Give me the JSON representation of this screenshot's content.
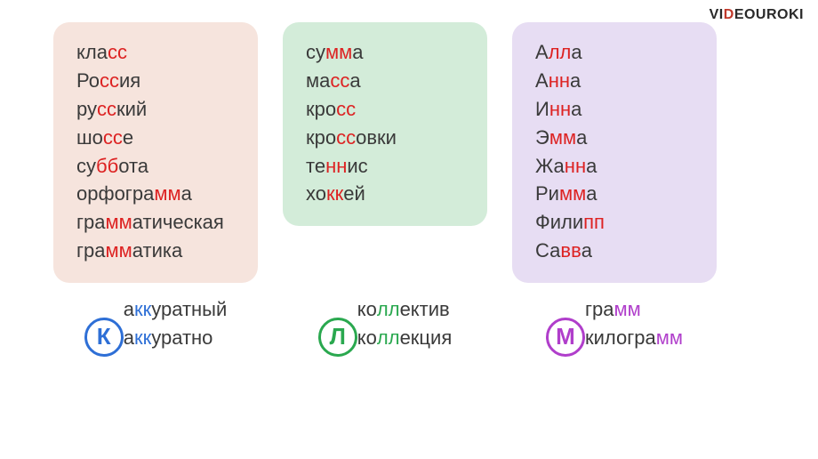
{
  "logo": {
    "pre": "VI",
    "d": "D",
    "post": "EOUROK",
    "dot": "I"
  },
  "columns": [
    {
      "bg": "card-pink",
      "words": [
        {
          "pre": "кла",
          "hl": "сс",
          "post": ""
        },
        {
          "pre": "Ро",
          "hl": "сс",
          "post": "ия"
        },
        {
          "pre": "ру",
          "hl": "сс",
          "post": "кий"
        },
        {
          "pre": "шо",
          "hl": "сс",
          "post": "е"
        },
        {
          "pre": "су",
          "hl": "бб",
          "post": "ота"
        },
        {
          "pre": "орфогра",
          "hl": "мм",
          "post": "а"
        },
        {
          "pre": "гра",
          "hl": "мм",
          "post": "атическая"
        },
        {
          "pre": "гра",
          "hl": "мм",
          "post": "атика"
        }
      ]
    },
    {
      "bg": "card-green",
      "words": [
        {
          "pre": "су",
          "hl": "мм",
          "post": "а"
        },
        {
          "pre": "ма",
          "hl": "сс",
          "post": "а"
        },
        {
          "pre": "кро",
          "hl": "сс",
          "post": ""
        },
        {
          "pre": "кро",
          "hl": "сс",
          "post": "овки"
        },
        {
          "pre": "те",
          "hl": "нн",
          "post": "ис"
        },
        {
          "pre": "хо",
          "hl": "кк",
          "post": "ей"
        }
      ]
    },
    {
      "bg": "card-lilac",
      "words": [
        {
          "pre": "А",
          "hl": "лл",
          "post": "а"
        },
        {
          "pre": "А",
          "hl": "нн",
          "post": "а"
        },
        {
          "pre": "И",
          "hl": "нн",
          "post": "а"
        },
        {
          "pre": "Э",
          "hl": "мм",
          "post": "а"
        },
        {
          "pre": "Жа",
          "hl": "нн",
          "post": "а"
        },
        {
          "pre": "Ри",
          "hl": "мм",
          "post": "а"
        },
        {
          "pre": "Фили",
          "hl": "пп",
          "post": ""
        },
        {
          "pre": "Са",
          "hl": "вв",
          "post": "а"
        }
      ]
    }
  ],
  "lower": [
    {
      "letter": "К",
      "letter_class": "letter-k",
      "hl_class": "hl-blue",
      "words": [
        {
          "pre": "а",
          "hl": "кк",
          "post": "уратный"
        },
        {
          "pre": "а",
          "hl": "кк",
          "post": "уратно"
        }
      ]
    },
    {
      "letter": "Л",
      "letter_class": "letter-l",
      "hl_class": "hl-green",
      "words": [
        {
          "pre": "ко",
          "hl": "лл",
          "post": "ектив"
        },
        {
          "pre": "ко",
          "hl": "лл",
          "post": "екция"
        }
      ]
    },
    {
      "letter": "М",
      "letter_class": "letter-m",
      "hl_class": "hl-purple",
      "words": [
        {
          "pre": "гра",
          "hl": "мм",
          "post": ""
        },
        {
          "pre": "килогра",
          "hl": "мм",
          "post": ""
        }
      ]
    }
  ]
}
